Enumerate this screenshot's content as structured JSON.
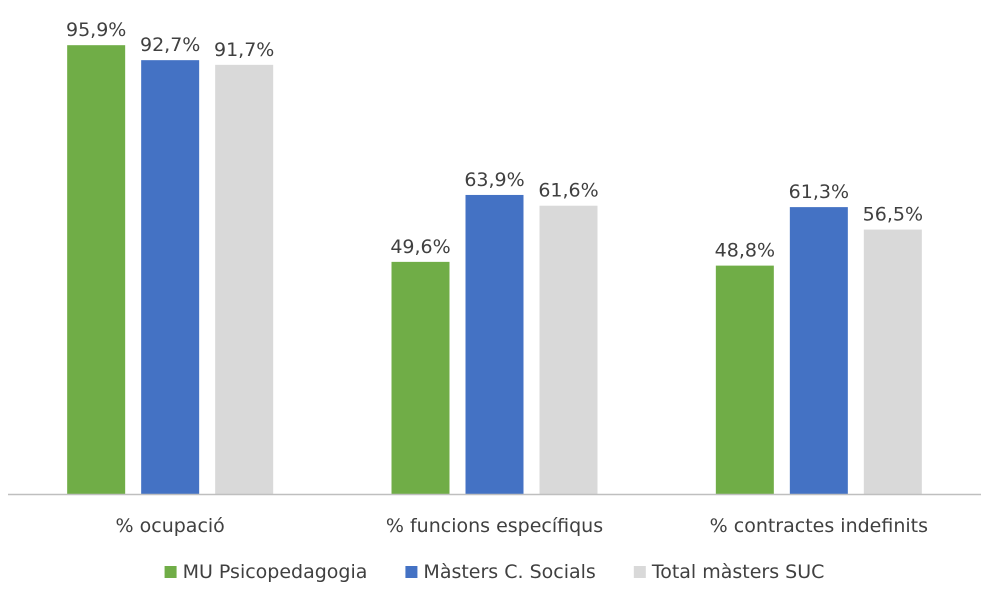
{
  "chart_data": {
    "type": "bar",
    "categories": [
      "% ocupació",
      "% funcions específiqus",
      "% contractes indefinits"
    ],
    "series": [
      {
        "name": "MU Psicopedagogia",
        "color": "#70AD47",
        "values": [
          95.9,
          49.6,
          48.8
        ],
        "labels": [
          "95,9%",
          "49,6%",
          "48,8%"
        ]
      },
      {
        "name": "Màsters C. Socials",
        "color": "#4472C4",
        "values": [
          92.7,
          63.9,
          61.3
        ],
        "labels": [
          "92,7%",
          "63,9%",
          "61,3%"
        ]
      },
      {
        "name": "Total màsters SUC",
        "color": "#D9D9D9",
        "values": [
          91.7,
          61.6,
          56.5
        ],
        "labels": [
          "91,7%",
          "61,6%",
          "56,5%"
        ]
      }
    ],
    "ylim": [
      0,
      100
    ],
    "grid": false,
    "legend_position": "bottom",
    "axis_color": "#BFBFBF"
  }
}
